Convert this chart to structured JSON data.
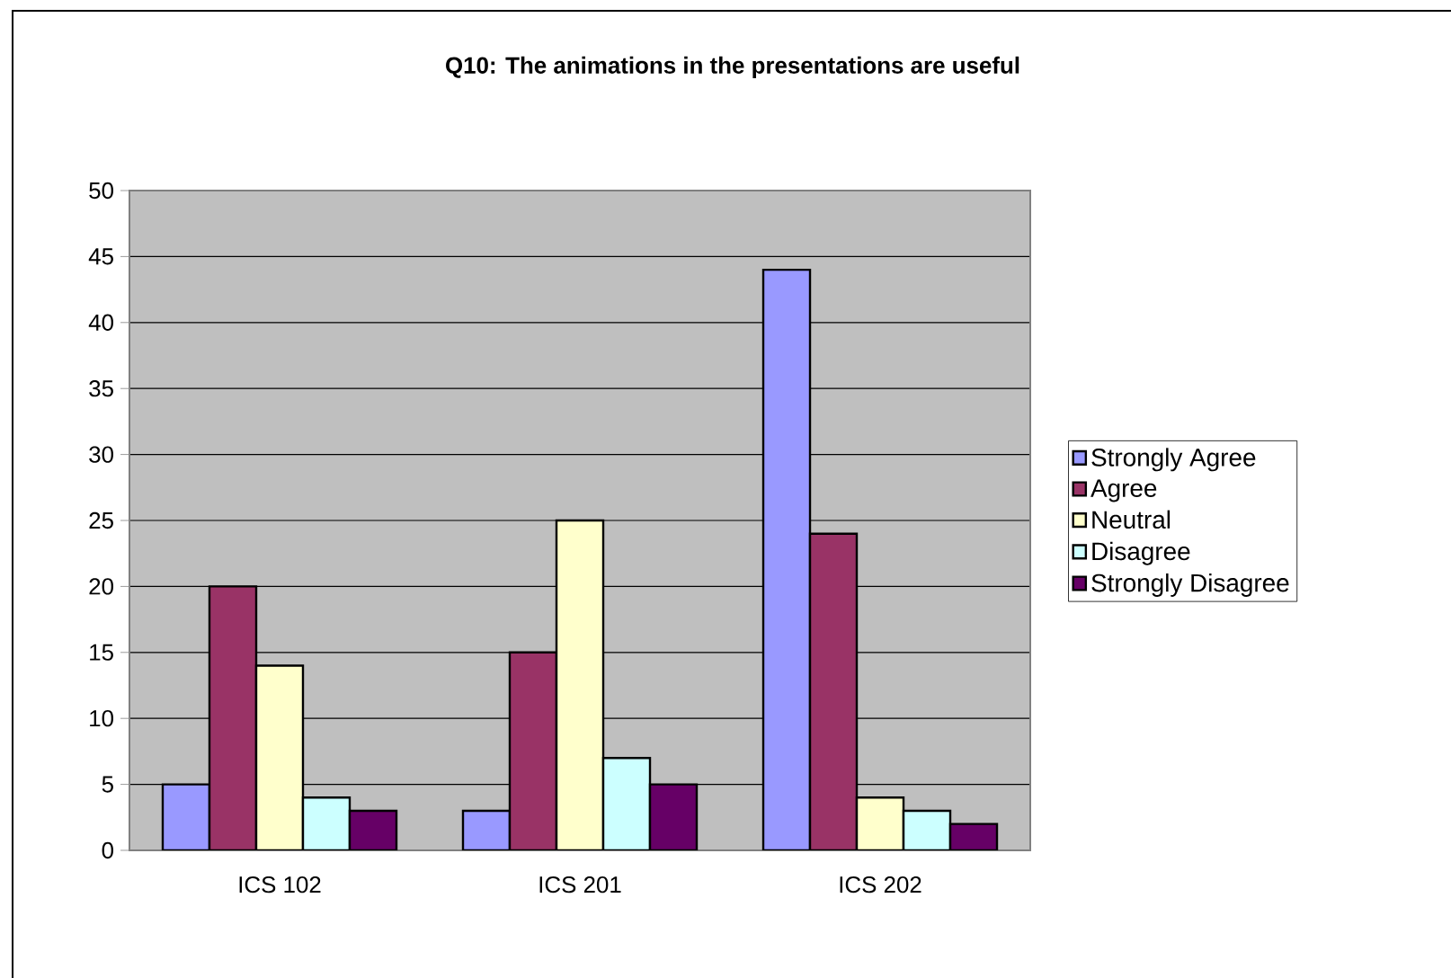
{
  "chart_data": {
    "type": "bar",
    "title": "Q10: The animations in the presentations are useful",
    "categories": [
      "ICS 102",
      "ICS 201",
      "ICS 202"
    ],
    "series": [
      {
        "name": "Strongly Agree",
        "color": "#9999ff",
        "values": [
          5,
          3,
          44
        ]
      },
      {
        "name": "Agree",
        "color": "#993366",
        "values": [
          20,
          15,
          24
        ]
      },
      {
        "name": "Neutral",
        "color": "#ffffcc",
        "values": [
          14,
          25,
          4
        ]
      },
      {
        "name": "Disagree",
        "color": "#ccffff",
        "values": [
          4,
          7,
          3
        ]
      },
      {
        "name": "Strongly Disagree",
        "color": "#660066",
        "values": [
          3,
          5,
          2
        ]
      }
    ],
    "ylim": [
      0,
      50
    ],
    "yticks": [
      0,
      5,
      10,
      15,
      20,
      25,
      30,
      35,
      40,
      45,
      50
    ],
    "grid": "y",
    "legend": "right"
  }
}
